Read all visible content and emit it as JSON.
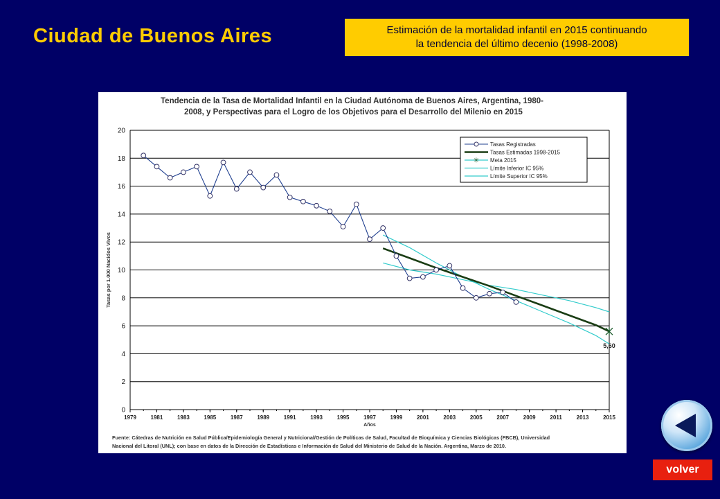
{
  "slide": {
    "title": "Ciudad de Buenos Aires",
    "callout_line1": "Estimación de la mortalidad infantil en 2015 continuando",
    "callout_line2": "la tendencia del último decenio (1998-2008)",
    "back_button_label": "volver",
    "back_icon": "left-triangle-icon"
  },
  "colors": {
    "background": "#000066",
    "title": "#ffcc00",
    "callout_bg": "#ffcc00",
    "registered": "#1f3f8f",
    "estimated": "#1a3d14",
    "ci": "#33cccc",
    "button": "#e8200f"
  },
  "chart_data": {
    "type": "line",
    "title_line1": "Tendencia de la Tasa de Mortalidad Infantil en la Ciudad Autónoma de Buenos Aires, Argentina, 1980-",
    "title_line2": "2008, y Perspectivas para el Logro de los Objetivos para el Desarrollo del Milenio en 2015",
    "xlabel": "Años",
    "ylabel": "Tasas por 1.000 Nacidos Vivos",
    "xlim": [
      1979,
      2015
    ],
    "ylim": [
      0,
      20
    ],
    "x_ticks": [
      "1979",
      "1981",
      "1983",
      "1985",
      "1987",
      "1989",
      "1991",
      "1993",
      "1995",
      "1997",
      "1999",
      "2001",
      "2003",
      "2005",
      "2007",
      "2009",
      "2011",
      "2013",
      "2015"
    ],
    "y_ticks": [
      "0",
      "2",
      "4",
      "6",
      "8",
      "10",
      "12",
      "14",
      "16",
      "18",
      "20"
    ],
    "grid": "horizontal",
    "legend_position": "top-right",
    "series": [
      {
        "name": "Tasas Registradas",
        "x": [
          1980,
          1981,
          1982,
          1983,
          1984,
          1985,
          1986,
          1987,
          1988,
          1989,
          1990,
          1991,
          1992,
          1993,
          1994,
          1995,
          1996,
          1997,
          1998,
          1999,
          2000,
          2001,
          2002,
          2003,
          2004,
          2005,
          2006,
          2007,
          2008
        ],
        "y": [
          18.2,
          17.4,
          16.6,
          17.0,
          17.4,
          15.3,
          17.7,
          15.8,
          17.0,
          15.9,
          16.8,
          15.2,
          14.9,
          14.6,
          14.2,
          13.1,
          14.7,
          12.2,
          13.0,
          11.0,
          9.4,
          9.5,
          10.0,
          10.3,
          8.7,
          8.0,
          8.3,
          8.4,
          7.7
        ]
      },
      {
        "name": "Tasas Estimadas 1998-2015",
        "x": [
          1998,
          2000,
          2002,
          2004,
          2006,
          2008,
          2010,
          2012,
          2014,
          2015
        ],
        "y": [
          11.55,
          10.85,
          10.15,
          9.5,
          8.85,
          8.15,
          7.45,
          6.75,
          6.05,
          5.6
        ]
      },
      {
        "name": "Meta 2015",
        "x": [
          2015
        ],
        "y": [
          5.6
        ]
      },
      {
        "name": "Límite Inferior IC 95%",
        "x": [
          1998,
          2000,
          2002,
          2004,
          2006,
          2008,
          2010,
          2012,
          2014,
          2015
        ],
        "y": [
          12.5,
          11.6,
          10.5,
          9.5,
          8.6,
          7.8,
          7.0,
          6.2,
          5.3,
          4.7
        ]
      },
      {
        "name": "Límite Superior IC 95%",
        "x": [
          1998,
          2000,
          2002,
          2004,
          2006,
          2008,
          2010,
          2012,
          2014,
          2015
        ],
        "y": [
          10.5,
          10.0,
          9.7,
          9.3,
          8.9,
          8.6,
          8.2,
          7.8,
          7.3,
          7.0
        ]
      }
    ],
    "annotation": "5,60",
    "source_line1": "Fuente: Cátedras de Nutrición en Salud Pública/Epidemiología General y Nutricional/Gestión de Políticas de Salud, Facultad de Bioquímica y Ciencias Biológicas (FBCB), Universidad",
    "source_line2": "Nacional del Litoral (UNL); con base en datos de la Dirección de Estadísticas e Información de Salud del Ministerio de Salud de la Nación. Argentina, Marzo de 2010."
  }
}
